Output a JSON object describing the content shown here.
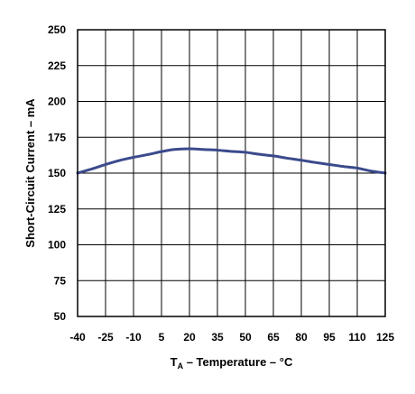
{
  "chart_data": {
    "type": "line",
    "xlabel_main": "T",
    "xlabel_sub": "A",
    "xlabel_rest": " – Temperature – °C",
    "ylabel": "Short-Circuit Current – mA",
    "xlim": [
      -40,
      125
    ],
    "ylim": [
      50,
      250
    ],
    "x_ticks": [
      -40,
      -25,
      -10,
      5,
      20,
      35,
      50,
      65,
      80,
      95,
      110,
      125
    ],
    "y_ticks": [
      50,
      75,
      100,
      125,
      150,
      175,
      200,
      225,
      250
    ],
    "grid": true,
    "line_color": "#3b4a8c",
    "series": [
      {
        "x": [
          -40,
          -32,
          -25,
          -17,
          -10,
          -2,
          5,
          12,
          20,
          27,
          35,
          42,
          50,
          57,
          65,
          72,
          80,
          87,
          95,
          102,
          110,
          117,
          125
        ],
        "values": [
          150,
          153,
          156,
          159,
          161,
          163,
          165,
          166.5,
          167,
          166.5,
          166,
          165.2,
          164.5,
          163.2,
          162,
          160.5,
          159,
          157.5,
          156,
          154.7,
          153.5,
          151.5,
          150
        ]
      }
    ]
  }
}
